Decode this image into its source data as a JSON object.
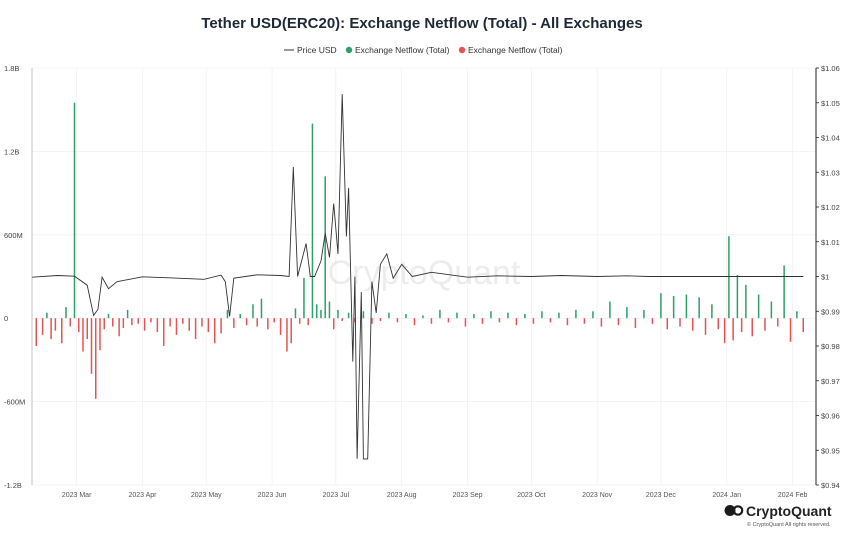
{
  "chart_data": {
    "type": "bar",
    "title": "Tether USD(ERC20): Exchange Netflow (Total) - All Exchanges",
    "legend_position": "top-center",
    "grid": true,
    "colors": {
      "price": "#333333",
      "inflow": "#2e9e6b",
      "outflow": "#e55353"
    },
    "series": [
      {
        "name": "Price USD",
        "type": "line",
        "axis": "right"
      },
      {
        "name": "Exchange Netflow (Total)",
        "type": "bar",
        "sign": "positive",
        "axis": "left"
      },
      {
        "name": "Exchange Netflow (Total)",
        "type": "bar",
        "sign": "negative",
        "axis": "left"
      }
    ],
    "left_axis": {
      "ylim": [
        -1200000000,
        1800000000
      ],
      "ticks": [
        -1200000000,
        -600000000,
        0,
        600000000,
        1200000000,
        1800000000
      ],
      "tick_labels": [
        "-1.2B",
        "-600M",
        "0",
        "600M",
        "1.2B",
        "1.8B"
      ]
    },
    "right_axis": {
      "ylim": [
        0.94,
        1.06
      ],
      "ticks": [
        0.94,
        0.95,
        0.96,
        0.97,
        0.98,
        0.99,
        1.0,
        1.01,
        1.02,
        1.03,
        1.04,
        1.05,
        1.06
      ],
      "tick_labels": [
        "$0.94",
        "$0.95",
        "$0.96",
        "$0.97",
        "$0.98",
        "$0.99",
        "$1",
        "$1.01",
        "$1.02",
        "$1.03",
        "$1.04",
        "$1.05",
        "$1.06"
      ]
    },
    "x_axis": {
      "range": [
        "2023-02-08",
        "2024-02-12"
      ],
      "ticks": [
        "2023-03-01",
        "2023-04-01",
        "2023-05-01",
        "2023-06-01",
        "2023-07-01",
        "2023-08-01",
        "2023-09-01",
        "2023-10-01",
        "2023-11-01",
        "2023-12-01",
        "2024-01-01",
        "2024-02-01"
      ],
      "tick_labels": [
        "2023 Mar",
        "2023 Apr",
        "2023 May",
        "2023 Jun",
        "2023 Jul",
        "2023 Aug",
        "2023 Sep",
        "2023 Oct",
        "2023 Nov",
        "2023 Dec",
        "2024 Jan",
        "2024 Feb"
      ]
    },
    "netflow_points": [
      {
        "x": "2023-02-10",
        "y": -200000000
      },
      {
        "x": "2023-02-13",
        "y": -120000000
      },
      {
        "x": "2023-02-15",
        "y": 40000000
      },
      {
        "x": "2023-02-17",
        "y": -150000000
      },
      {
        "x": "2023-02-19",
        "y": -90000000
      },
      {
        "x": "2023-02-22",
        "y": -180000000
      },
      {
        "x": "2023-02-24",
        "y": 80000000
      },
      {
        "x": "2023-02-26",
        "y": -60000000
      },
      {
        "x": "2023-02-28",
        "y": 1550000000
      },
      {
        "x": "2023-03-02",
        "y": -100000000
      },
      {
        "x": "2023-03-04",
        "y": -240000000
      },
      {
        "x": "2023-03-06",
        "y": -150000000
      },
      {
        "x": "2023-03-08",
        "y": -400000000
      },
      {
        "x": "2023-03-10",
        "y": -580000000
      },
      {
        "x": "2023-03-12",
        "y": -230000000
      },
      {
        "x": "2023-03-14",
        "y": -80000000
      },
      {
        "x": "2023-03-16",
        "y": 30000000
      },
      {
        "x": "2023-03-18",
        "y": -60000000
      },
      {
        "x": "2023-03-21",
        "y": -130000000
      },
      {
        "x": "2023-03-23",
        "y": -70000000
      },
      {
        "x": "2023-03-25",
        "y": 60000000
      },
      {
        "x": "2023-03-27",
        "y": -50000000
      },
      {
        "x": "2023-03-30",
        "y": -40000000
      },
      {
        "x": "2023-04-02",
        "y": -90000000
      },
      {
        "x": "2023-04-05",
        "y": -30000000
      },
      {
        "x": "2023-04-08",
        "y": -100000000
      },
      {
        "x": "2023-04-11",
        "y": -200000000
      },
      {
        "x": "2023-04-14",
        "y": -60000000
      },
      {
        "x": "2023-04-17",
        "y": -120000000
      },
      {
        "x": "2023-04-20",
        "y": -40000000
      },
      {
        "x": "2023-04-23",
        "y": -90000000
      },
      {
        "x": "2023-04-26",
        "y": -150000000
      },
      {
        "x": "2023-04-29",
        "y": -60000000
      },
      {
        "x": "2023-05-02",
        "y": -100000000
      },
      {
        "x": "2023-05-05",
        "y": -180000000
      },
      {
        "x": "2023-05-08",
        "y": -110000000
      },
      {
        "x": "2023-05-11",
        "y": 60000000
      },
      {
        "x": "2023-05-14",
        "y": -70000000
      },
      {
        "x": "2023-05-17",
        "y": 30000000
      },
      {
        "x": "2023-05-20",
        "y": -50000000
      },
      {
        "x": "2023-05-23",
        "y": 100000000
      },
      {
        "x": "2023-05-25",
        "y": -60000000
      },
      {
        "x": "2023-05-27",
        "y": 140000000
      },
      {
        "x": "2023-05-30",
        "y": -80000000
      },
      {
        "x": "2023-06-02",
        "y": -30000000
      },
      {
        "x": "2023-06-05",
        "y": -120000000
      },
      {
        "x": "2023-06-08",
        "y": -240000000
      },
      {
        "x": "2023-06-10",
        "y": -180000000
      },
      {
        "x": "2023-06-12",
        "y": 70000000
      },
      {
        "x": "2023-06-14",
        "y": -40000000
      },
      {
        "x": "2023-06-16",
        "y": 290000000
      },
      {
        "x": "2023-06-18",
        "y": -50000000
      },
      {
        "x": "2023-06-20",
        "y": 1400000000
      },
      {
        "x": "2023-06-22",
        "y": 100000000
      },
      {
        "x": "2023-06-24",
        "y": 60000000
      },
      {
        "x": "2023-06-26",
        "y": 1020000000
      },
      {
        "x": "2023-06-28",
        "y": 120000000
      },
      {
        "x": "2023-06-30",
        "y": -80000000
      },
      {
        "x": "2023-07-02",
        "y": 60000000
      },
      {
        "x": "2023-07-04",
        "y": -20000000
      },
      {
        "x": "2023-07-07",
        "y": 40000000
      },
      {
        "x": "2023-07-10",
        "y": -30000000
      },
      {
        "x": "2023-07-14",
        "y": 50000000
      },
      {
        "x": "2023-07-18",
        "y": -40000000
      },
      {
        "x": "2023-07-22",
        "y": -20000000
      },
      {
        "x": "2023-07-26",
        "y": 40000000
      },
      {
        "x": "2023-07-30",
        "y": -30000000
      },
      {
        "x": "2023-08-03",
        "y": 30000000
      },
      {
        "x": "2023-08-07",
        "y": -50000000
      },
      {
        "x": "2023-08-11",
        "y": 20000000
      },
      {
        "x": "2023-08-15",
        "y": -40000000
      },
      {
        "x": "2023-08-19",
        "y": 60000000
      },
      {
        "x": "2023-08-23",
        "y": -30000000
      },
      {
        "x": "2023-08-27",
        "y": 40000000
      },
      {
        "x": "2023-08-31",
        "y": -60000000
      },
      {
        "x": "2023-09-04",
        "y": 30000000
      },
      {
        "x": "2023-09-08",
        "y": -40000000
      },
      {
        "x": "2023-09-12",
        "y": 50000000
      },
      {
        "x": "2023-09-16",
        "y": -30000000
      },
      {
        "x": "2023-09-20",
        "y": 40000000
      },
      {
        "x": "2023-09-24",
        "y": -50000000
      },
      {
        "x": "2023-09-28",
        "y": 30000000
      },
      {
        "x": "2023-10-02",
        "y": -40000000
      },
      {
        "x": "2023-10-06",
        "y": 50000000
      },
      {
        "x": "2023-10-10",
        "y": -30000000
      },
      {
        "x": "2023-10-14",
        "y": 40000000
      },
      {
        "x": "2023-10-18",
        "y": -50000000
      },
      {
        "x": "2023-10-22",
        "y": 60000000
      },
      {
        "x": "2023-10-26",
        "y": -40000000
      },
      {
        "x": "2023-10-30",
        "y": 50000000
      },
      {
        "x": "2023-11-03",
        "y": -60000000
      },
      {
        "x": "2023-11-07",
        "y": 120000000
      },
      {
        "x": "2023-11-11",
        "y": -50000000
      },
      {
        "x": "2023-11-15",
        "y": 80000000
      },
      {
        "x": "2023-11-19",
        "y": -70000000
      },
      {
        "x": "2023-11-23",
        "y": 60000000
      },
      {
        "x": "2023-11-27",
        "y": -40000000
      },
      {
        "x": "2023-12-01",
        "y": 180000000
      },
      {
        "x": "2023-12-04",
        "y": -80000000
      },
      {
        "x": "2023-12-07",
        "y": 160000000
      },
      {
        "x": "2023-12-10",
        "y": -60000000
      },
      {
        "x": "2023-12-13",
        "y": 170000000
      },
      {
        "x": "2023-12-16",
        "y": -90000000
      },
      {
        "x": "2023-12-19",
        "y": 150000000
      },
      {
        "x": "2023-12-22",
        "y": -120000000
      },
      {
        "x": "2023-12-25",
        "y": 100000000
      },
      {
        "x": "2023-12-28",
        "y": -80000000
      },
      {
        "x": "2023-12-31",
        "y": -180000000
      },
      {
        "x": "2024-01-02",
        "y": 590000000
      },
      {
        "x": "2024-01-04",
        "y": -160000000
      },
      {
        "x": "2024-01-06",
        "y": 310000000
      },
      {
        "x": "2024-01-08",
        "y": -100000000
      },
      {
        "x": "2024-01-10",
        "y": 240000000
      },
      {
        "x": "2024-01-13",
        "y": -130000000
      },
      {
        "x": "2024-01-16",
        "y": 170000000
      },
      {
        "x": "2024-01-19",
        "y": -90000000
      },
      {
        "x": "2024-01-22",
        "y": 120000000
      },
      {
        "x": "2024-01-25",
        "y": -60000000
      },
      {
        "x": "2024-01-28",
        "y": 380000000
      },
      {
        "x": "2024-01-31",
        "y": -170000000
      },
      {
        "x": "2024-02-03",
        "y": 50000000
      },
      {
        "x": "2024-02-06",
        "y": -100000000
      }
    ],
    "price_points": [
      {
        "x": "2023-02-08",
        "y": 0.9998
      },
      {
        "x": "2023-02-20",
        "y": 1.0003
      },
      {
        "x": "2023-02-28",
        "y": 1.0001
      },
      {
        "x": "2023-03-06",
        "y": 0.9975
      },
      {
        "x": "2023-03-09",
        "y": 0.9888
      },
      {
        "x": "2023-03-11",
        "y": 0.9905
      },
      {
        "x": "2023-03-13",
        "y": 0.9998
      },
      {
        "x": "2023-03-16",
        "y": 0.9965
      },
      {
        "x": "2023-03-20",
        "y": 0.9985
      },
      {
        "x": "2023-04-01",
        "y": 0.9999
      },
      {
        "x": "2023-04-15",
        "y": 0.9996
      },
      {
        "x": "2023-04-30",
        "y": 0.9992
      },
      {
        "x": "2023-05-08",
        "y": 1.0004
      },
      {
        "x": "2023-05-10",
        "y": 0.9985
      },
      {
        "x": "2023-05-12",
        "y": 0.9885
      },
      {
        "x": "2023-05-14",
        "y": 0.9995
      },
      {
        "x": "2023-05-25",
        "y": 1.0005
      },
      {
        "x": "2023-06-05",
        "y": 1.0003
      },
      {
        "x": "2023-06-09",
        "y": 1.0
      },
      {
        "x": "2023-06-11",
        "y": 1.0315
      },
      {
        "x": "2023-06-13",
        "y": 1.0
      },
      {
        "x": "2023-06-17",
        "y": 1.0095
      },
      {
        "x": "2023-06-19",
        "y": 1.0
      },
      {
        "x": "2023-06-21",
        "y": 1.0
      },
      {
        "x": "2023-06-24",
        "y": 1.0045
      },
      {
        "x": "2023-06-26",
        "y": 1.0125
      },
      {
        "x": "2023-06-28",
        "y": 1.0055
      },
      {
        "x": "2023-06-30",
        "y": 1.021
      },
      {
        "x": "2023-07-02",
        "y": 1.0065
      },
      {
        "x": "2023-07-04",
        "y": 1.0525
      },
      {
        "x": "2023-07-06",
        "y": 1.0115
      },
      {
        "x": "2023-07-07",
        "y": 1.0255
      },
      {
        "x": "2023-07-09",
        "y": 0.9755
      },
      {
        "x": "2023-07-10",
        "y": 1.0
      },
      {
        "x": "2023-07-11",
        "y": 0.9475
      },
      {
        "x": "2023-07-13",
        "y": 0.9955
      },
      {
        "x": "2023-07-14",
        "y": 0.9475
      },
      {
        "x": "2023-07-16",
        "y": 0.9475
      },
      {
        "x": "2023-07-18",
        "y": 0.9985
      },
      {
        "x": "2023-07-20",
        "y": 0.9895
      },
      {
        "x": "2023-07-22",
        "y": 1.0035
      },
      {
        "x": "2023-07-25",
        "y": 1.0065
      },
      {
        "x": "2023-07-28",
        "y": 0.9995
      },
      {
        "x": "2023-08-01",
        "y": 1.0035
      },
      {
        "x": "2023-08-06",
        "y": 1.0
      },
      {
        "x": "2023-08-15",
        "y": 1.0012
      },
      {
        "x": "2023-09-01",
        "y": 0.9998
      },
      {
        "x": "2023-09-15",
        "y": 1.0002
      },
      {
        "x": "2023-10-01",
        "y": 1.0
      },
      {
        "x": "2023-10-15",
        "y": 1.0003
      },
      {
        "x": "2023-11-01",
        "y": 1.0
      },
      {
        "x": "2023-11-15",
        "y": 1.0002
      },
      {
        "x": "2023-11-25",
        "y": 1.0
      },
      {
        "x": "2024-02-06",
        "y": 1.0
      }
    ],
    "watermark": "CryptoQuant",
    "brand": {
      "name": "CryptoQuant",
      "copyright": "© CryptoQuant All rights reserved."
    }
  }
}
